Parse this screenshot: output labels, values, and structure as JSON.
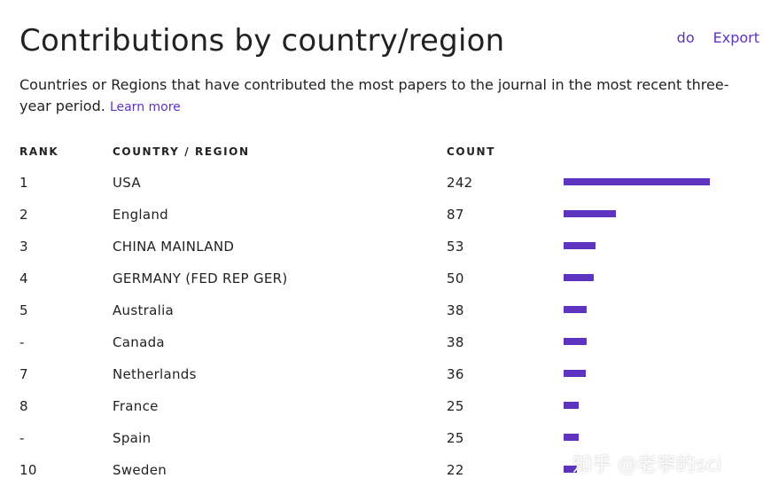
{
  "title": "Contributions by country/region",
  "export": {
    "icon_text": "do ",
    "label": "Export"
  },
  "description": {
    "text": "Countries or Regions that have contributed the most papers to the journal in the most recent three-year period.",
    "link": "Learn more"
  },
  "table": {
    "headers": {
      "rank": "RANK",
      "country": "COUNTRY / REGION",
      "count": "COUNT"
    },
    "max_count": 242,
    "rows": [
      {
        "rank": "1",
        "country": "USA",
        "count": "242",
        "value": 242
      },
      {
        "rank": "2",
        "country": "England",
        "count": "87",
        "value": 87
      },
      {
        "rank": "3",
        "country": "CHINA MAINLAND",
        "count": "53",
        "value": 53
      },
      {
        "rank": "4",
        "country": "GERMANY (FED REP GER)",
        "count": "50",
        "value": 50
      },
      {
        "rank": "5",
        "country": "Australia",
        "count": "38",
        "value": 38
      },
      {
        "rank": "-",
        "country": "Canada",
        "count": "38",
        "value": 38
      },
      {
        "rank": "7",
        "country": "Netherlands",
        "count": "36",
        "value": 36
      },
      {
        "rank": "8",
        "country": "France",
        "count": "25",
        "value": 25
      },
      {
        "rank": "-",
        "country": "Spain",
        "count": "25",
        "value": 25
      },
      {
        "rank": "10",
        "country": "Sweden",
        "count": "22",
        "value": 22
      }
    ]
  },
  "bar_color": "#5e33bf",
  "link_color": "#5e33bf",
  "watermark": "知乎 @老李的sci"
}
